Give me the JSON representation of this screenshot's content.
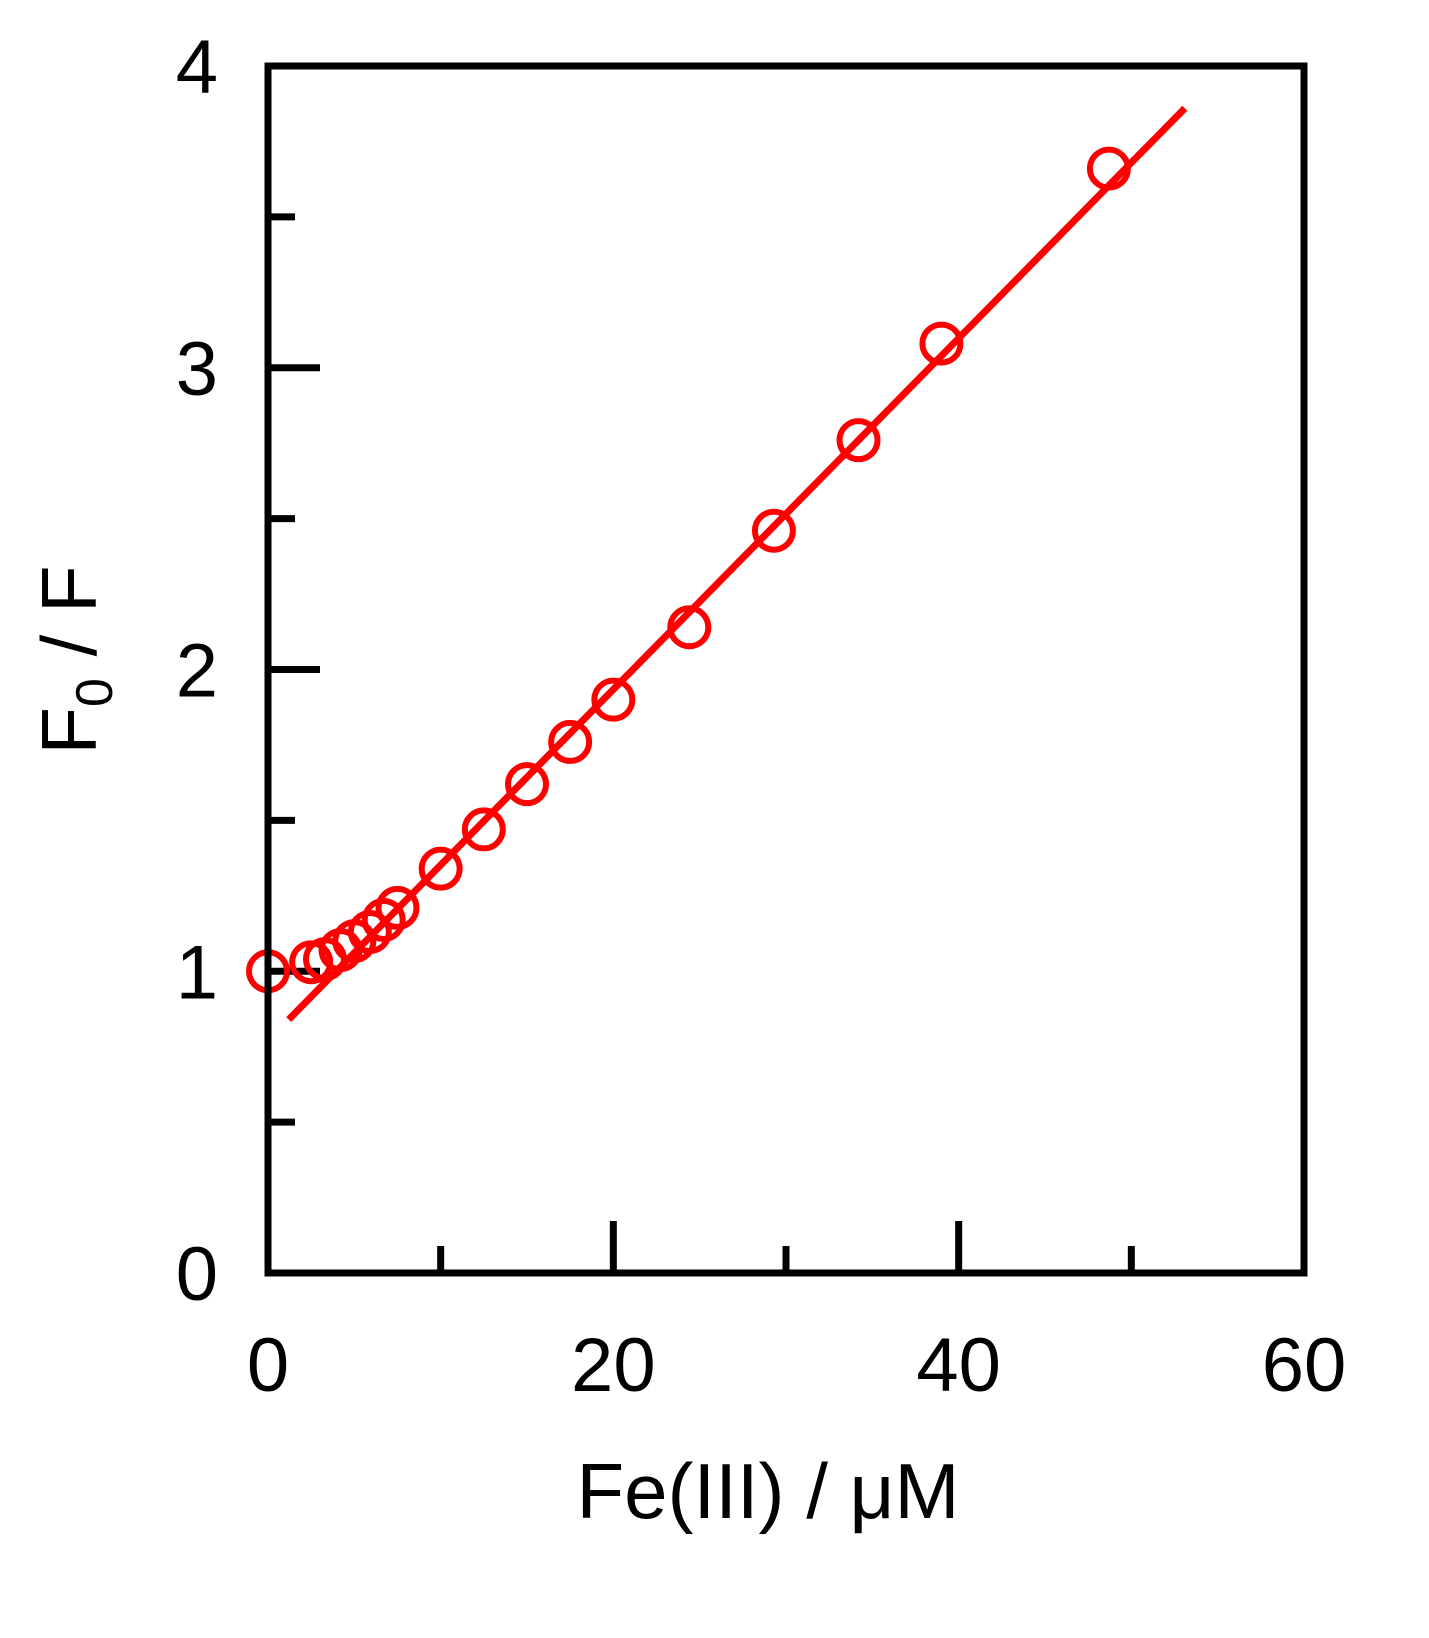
{
  "chart_data": {
    "type": "scatter",
    "title": "",
    "xlabel": "Fe(III) / μM",
    "ylabel_main": "F",
    "ylabel_sub": "0",
    "ylabel_rest": " / F",
    "xlim": [
      0,
      60
    ],
    "ylim": [
      0,
      4
    ],
    "x_ticks": [
      0,
      20,
      40,
      60
    ],
    "x_tick_labels": [
      "0",
      "20",
      "40",
      "60"
    ],
    "x_minor_ticks": [
      10,
      30,
      50
    ],
    "y_ticks": [
      0,
      1,
      2,
      3,
      4
    ],
    "y_tick_labels": [
      "0",
      "1",
      "2",
      "3",
      "4"
    ],
    "y_minor_ticks": [
      0.5,
      1.5,
      2.5,
      3.5
    ],
    "grid": false,
    "color": "#ff0000",
    "series": [
      {
        "points": [
          {
            "x": 0,
            "y": 1.0
          },
          {
            "x": 2.5,
            "y": 1.03
          },
          {
            "x": 3.3,
            "y": 1.04
          },
          {
            "x": 4.2,
            "y": 1.07
          },
          {
            "x": 5.0,
            "y": 1.1
          },
          {
            "x": 5.9,
            "y": 1.13
          },
          {
            "x": 6.7,
            "y": 1.17
          },
          {
            "x": 7.5,
            "y": 1.21
          },
          {
            "x": 10,
            "y": 1.34
          },
          {
            "x": 12.5,
            "y": 1.47
          },
          {
            "x": 15,
            "y": 1.62
          },
          {
            "x": 17.5,
            "y": 1.76
          },
          {
            "x": 20,
            "y": 1.9
          },
          {
            "x": 24.4,
            "y": 2.14
          },
          {
            "x": 29.3,
            "y": 2.46
          },
          {
            "x": 34.2,
            "y": 2.76
          },
          {
            "x": 39,
            "y": 3.08
          },
          {
            "x": 48.7,
            "y": 3.66
          }
        ]
      }
    ],
    "fit_line": {
      "x": [
        1.2,
        53.1
      ],
      "y": [
        0.84,
        3.86
      ]
    }
  }
}
